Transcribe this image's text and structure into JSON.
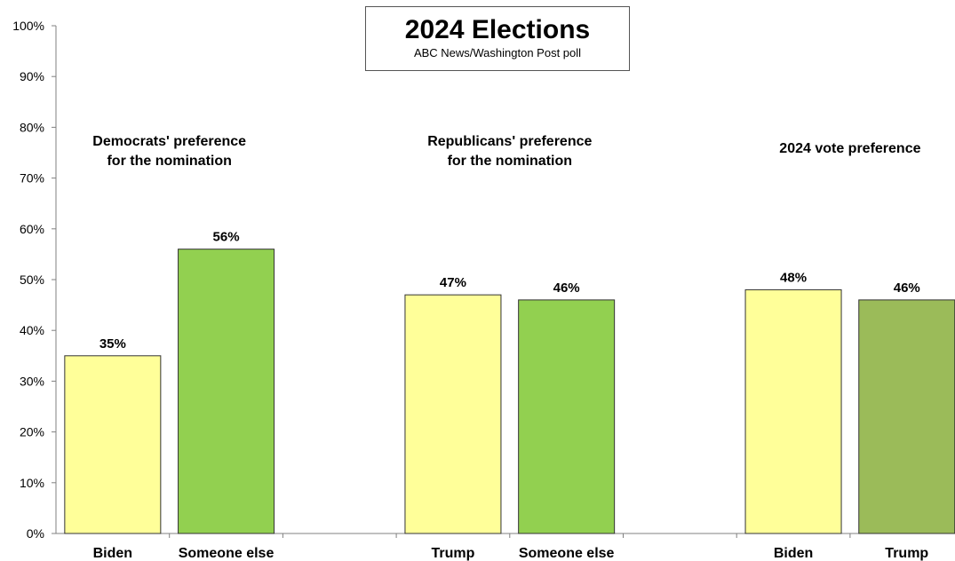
{
  "chart_data": {
    "type": "bar",
    "title": "2024 Elections",
    "subtitle": "ABC News/Washington Post poll",
    "xlabel": "",
    "ylabel": "",
    "ylim": [
      0,
      100
    ],
    "y_ticks": [
      "0%",
      "10%",
      "20%",
      "30%",
      "40%",
      "50%",
      "60%",
      "70%",
      "80%",
      "90%",
      "100%"
    ],
    "grid": false,
    "groups": [
      {
        "title": [
          "Democrats' preference",
          "for the nomination"
        ],
        "bars": [
          {
            "category": "Biden",
            "value": 35,
            "label": "35%",
            "color": "#ffff99"
          },
          {
            "category": "Someone else",
            "value": 56,
            "label": "56%",
            "color": "#92d050"
          }
        ]
      },
      {
        "title": [
          "Republicans' preference",
          "for the nomination"
        ],
        "bars": [
          {
            "category": "Trump",
            "value": 47,
            "label": "47%",
            "color": "#ffff99"
          },
          {
            "category": "Someone else",
            "value": 46,
            "label": "46%",
            "color": "#92d050"
          }
        ]
      },
      {
        "title": [
          "2024 vote preference"
        ],
        "bars": [
          {
            "category": "Biden",
            "value": 48,
            "label": "48%",
            "color": "#ffff99"
          },
          {
            "category": "Trump",
            "value": 46,
            "label": "46%",
            "color": "#9bbb59"
          }
        ]
      }
    ]
  }
}
